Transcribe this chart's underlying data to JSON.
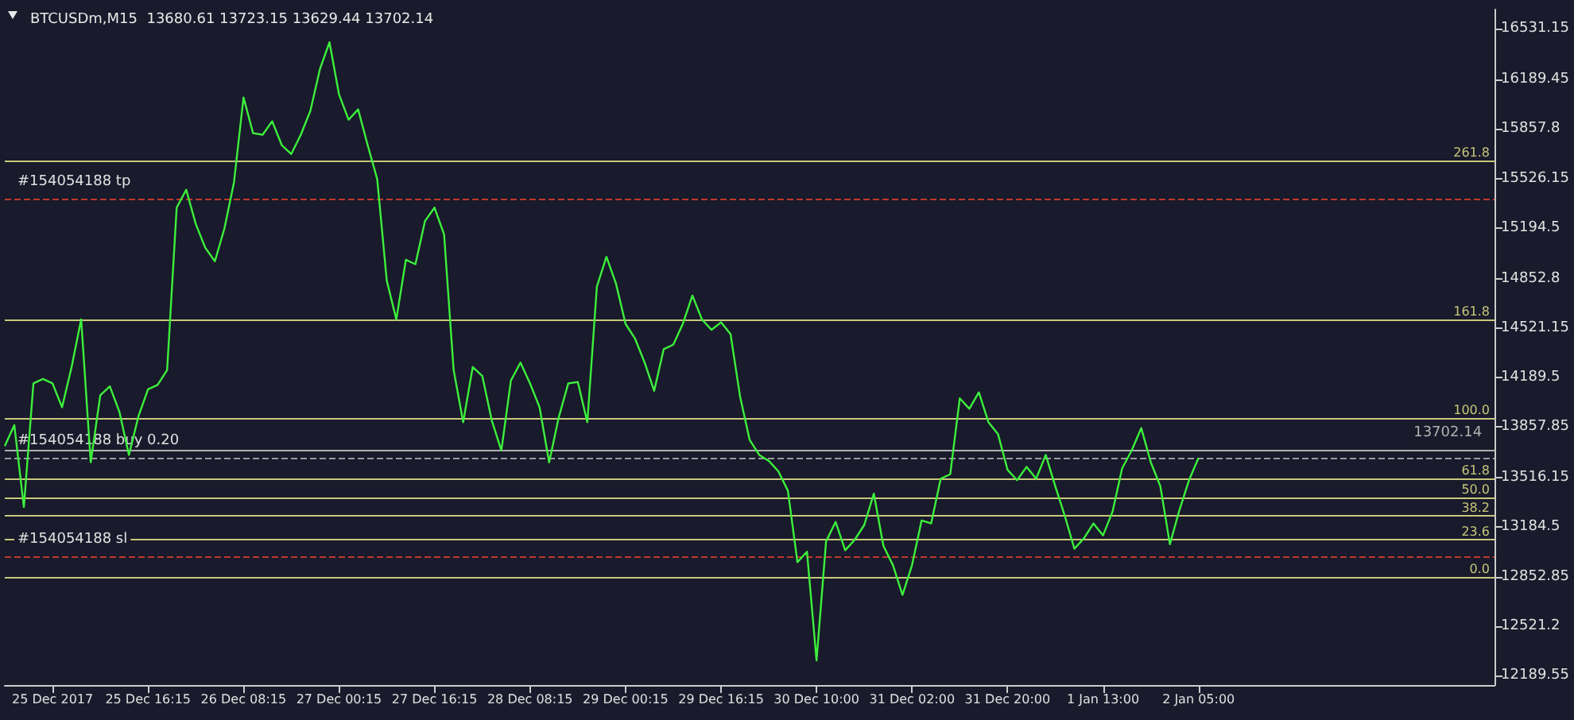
{
  "chart_data": {
    "type": "line",
    "title": "BTCUSDm,M15  13680.61 13723.15 13629.44 13702.14",
    "categories": [
      null,
      null,
      null,
      null,
      null,
      "25 Dec 2017",
      null,
      null,
      null,
      null,
      null,
      null,
      null,
      null,
      null,
      "25 Dec 16:15",
      null,
      null,
      null,
      null,
      null,
      null,
      null,
      null,
      null,
      "26 Dec 08:15",
      null,
      null,
      null,
      null,
      null,
      null,
      null,
      null,
      null,
      "27 Dec 00:15",
      null,
      null,
      null,
      null,
      null,
      null,
      null,
      null,
      null,
      "27 Dec 16:15",
      null,
      null,
      null,
      null,
      null,
      null,
      null,
      null,
      null,
      "28 Dec 08:15",
      null,
      null,
      null,
      null,
      null,
      null,
      null,
      null,
      null,
      "29 Dec 00:15",
      null,
      null,
      null,
      null,
      null,
      null,
      null,
      null,
      null,
      "29 Dec 16:15",
      null,
      null,
      null,
      null,
      null,
      null,
      null,
      null,
      null,
      "30 Dec 10:00",
      null,
      null,
      null,
      null,
      null,
      null,
      null,
      null,
      null,
      "31 Dec 02:00",
      null,
      null,
      null,
      null,
      null,
      null,
      null,
      null,
      null,
      "31 Dec 20:00",
      null,
      null,
      null,
      null,
      null,
      null,
      null,
      null,
      null,
      "1 Jan 13:00",
      null,
      null,
      null,
      null,
      null,
      null,
      null,
      null,
      null,
      "2 Jan 05:00",
      null,
      null,
      null,
      null,
      null,
      null,
      null,
      null,
      null,
      null,
      null,
      null,
      null,
      null,
      null,
      null,
      null,
      null,
      null,
      null,
      null,
      null,
      null,
      null,
      null,
      null,
      null,
      null,
      null,
      null,
      null
    ],
    "series": [
      {
        "color": "#3cf03c",
        "values": [
          13730,
          13870,
          13320,
          14150,
          14180,
          14150,
          13990,
          14260,
          14580,
          13620,
          14070,
          14130,
          13960,
          13670,
          13930,
          14110,
          14140,
          14240,
          15330,
          15450,
          15220,
          15060,
          14970,
          15190,
          15500,
          16070,
          15830,
          15820,
          15910,
          15750,
          15690,
          15820,
          15980,
          16260,
          16440,
          16090,
          15920,
          15990,
          15750,
          15520,
          14840,
          14580,
          14980,
          14950,
          15240,
          15330,
          15150,
          14240,
          13890,
          14260,
          14200,
          13900,
          13700,
          14170,
          14290,
          14150,
          13990,
          13620,
          13920,
          14150,
          14160,
          13890,
          14800,
          15000,
          14820,
          14550,
          14450,
          14290,
          14100,
          14380,
          14410,
          14550,
          14740,
          14580,
          14510,
          14560,
          14480,
          14060,
          13770,
          13670,
          13630,
          13560,
          13430,
          12950,
          13020,
          12290,
          13090,
          13220,
          13030,
          13100,
          13200,
          13410,
          13060,
          12930,
          12730,
          12930,
          13230,
          13210,
          13510,
          13540,
          14050,
          13980,
          14090,
          13890,
          13810,
          13570,
          13500,
          13590,
          13510,
          13670,
          13460,
          13260,
          13040,
          13110,
          13210,
          13130,
          13290,
          13580,
          13700,
          13850,
          13620,
          13460,
          13070,
          13300,
          13500,
          13650,
          null,
          null,
          null,
          null,
          null,
          null,
          null,
          null,
          null,
          null,
          null,
          null,
          null,
          null,
          null,
          null,
          null,
          null,
          null,
          null,
          null,
          null,
          null,
          null,
          null,
          null,
          null,
          null,
          null,
          null,
          null
        ]
      }
    ],
    "ylim": [
      12125,
      16660
    ],
    "yticks": [
      12189.55,
      12521.2,
      12852.85,
      13184.5,
      13516.15,
      13857.85,
      14189.5,
      14521.15,
      14852.8,
      15194.5,
      15526.15,
      15857.8,
      16189.45,
      16531.15
    ],
    "ref_lines": [
      {
        "axis": "y",
        "value": 15390,
        "label": "#154054188 tp",
        "color": "#c0392b",
        "line_style": "dashed"
      },
      {
        "axis": "y",
        "value": 13650,
        "label": "#154054188 buy 0.20",
        "color": "#9a9a9a",
        "line_style": "dashed"
      },
      {
        "axis": "y",
        "value": 12990,
        "label": "#154054188 sl",
        "color": "#c0392b",
        "line_style": "dashed"
      },
      {
        "axis": "y",
        "value": 13702.14,
        "label": "13702.14",
        "color": "#b0b0b0",
        "line_style": "solid"
      },
      {
        "axis": "y",
        "value": 15644,
        "color": "#c8c87a",
        "line_style": "solid"
      },
      {
        "axis": "y",
        "value": 14577,
        "color": "#c8c87a",
        "line_style": "solid"
      },
      {
        "axis": "y",
        "value": 13918,
        "color": "#c8c87a",
        "line_style": "solid"
      },
      {
        "axis": "y",
        "value": 13510,
        "color": "#c8c87a",
        "line_style": "solid"
      },
      {
        "axis": "y",
        "value": 13384,
        "color": "#c8c87a",
        "line_style": "solid"
      },
      {
        "axis": "y",
        "value": 13259,
        "color": "#c8c87a",
        "line_style": "solid"
      },
      {
        "axis": "y",
        "value": 13103,
        "color": "#c8c87a",
        "line_style": "solid"
      },
      {
        "axis": "y",
        "value": 12851,
        "color": "#c8c87a",
        "line_style": "solid"
      }
    ],
    "annotations": [
      {
        "text": "261.8",
        "y": 15644
      },
      {
        "text": "161.8",
        "y": 14577
      },
      {
        "text": "100.0",
        "y": 13918
      },
      {
        "text": "61.8",
        "y": 13510
      },
      {
        "text": "50.0",
        "y": 13384
      },
      {
        "text": "38.2",
        "y": 13259
      },
      {
        "text": "23.6",
        "y": 13103
      },
      {
        "text": "0.0",
        "y": 12851
      }
    ],
    "grid": false,
    "marker": "none",
    "line_style": "solid"
  }
}
